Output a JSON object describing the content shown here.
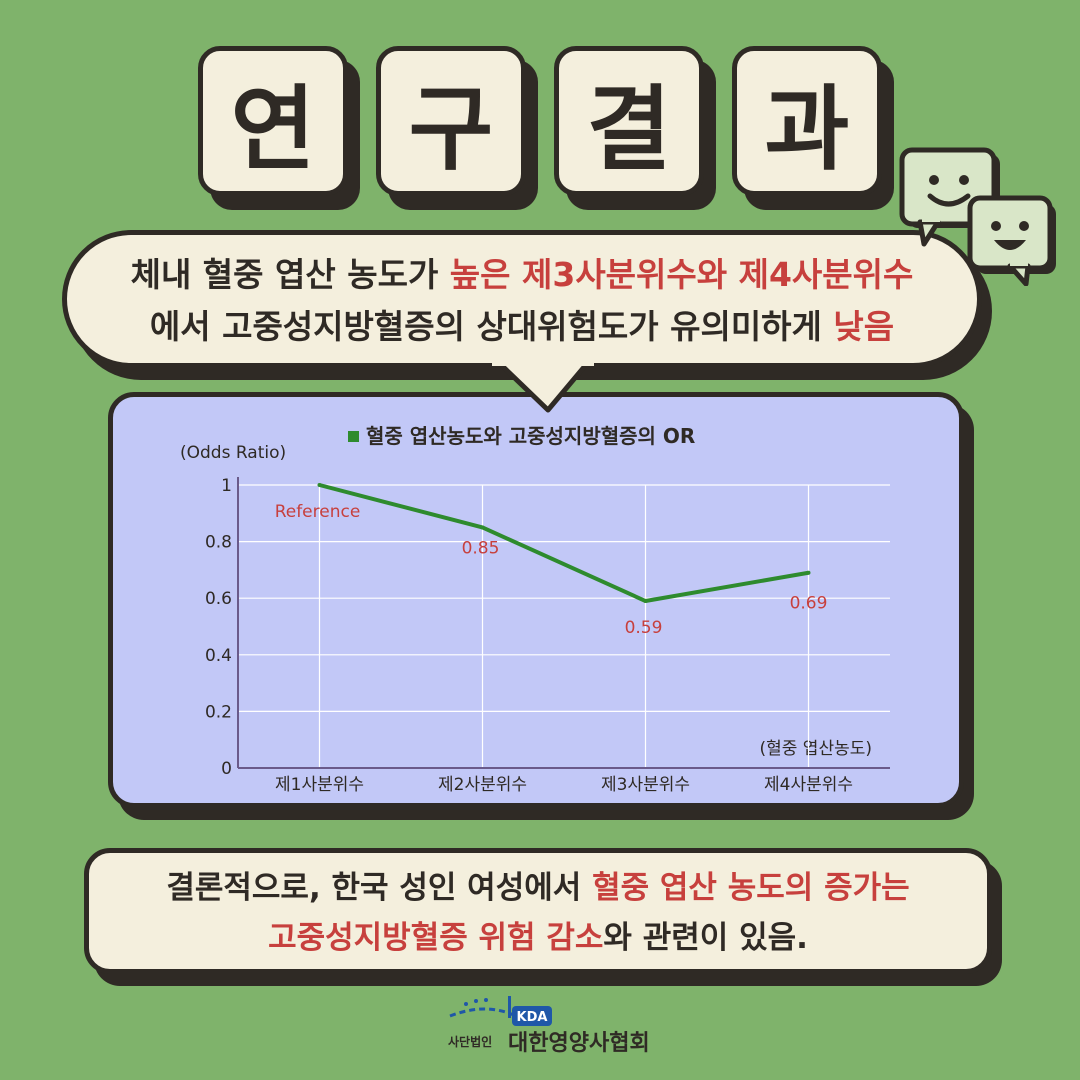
{
  "title": {
    "chars": [
      "연",
      "구",
      "결",
      "과"
    ]
  },
  "summary": {
    "line1_plain": "체내 혈중 엽산 농도가 ",
    "line1_highlight": "높은 제3사분위수와 제4사분위수",
    "line2_plain": "에서 고중성지방혈증의 상대위험도가 유의미하게 ",
    "line2_highlight": "낮음"
  },
  "chart_data": {
    "type": "line",
    "title": "혈중 엽산농도와 고중성지방혈증의 OR",
    "ylabel": "(Odds Ratio)",
    "xlabel": "(혈중 엽산농도)",
    "categories": [
      "제1사분위수",
      "제2사분위수",
      "제3사분위수",
      "제4사분위수"
    ],
    "series": [
      {
        "name": "혈중 엽산농도와 고중성지방혈증의 OR",
        "values": [
          1,
          0.85,
          0.59,
          0.69
        ]
      }
    ],
    "data_labels": [
      "Reference",
      "0.85",
      "0.59",
      "0.69"
    ],
    "yticks": [
      "0",
      "0.2",
      "0.4",
      "0.6",
      "0.8",
      "1"
    ],
    "ylim": [
      0,
      1
    ],
    "grid": true,
    "legend": "top-center",
    "colors": {
      "line": "#2e8b2e",
      "label": "#c7403d",
      "axis": "#6a5a8a",
      "background": "#c2c8f7"
    }
  },
  "conclusion": {
    "line1_plain": "결론적으로, 한국 성인 여성에서 ",
    "line1_highlight": "혈중 엽산 농도의 증가는",
    "line2_highlight": "고중성지방혈증 위험 감소",
    "line2_plain": "와 관련이 있음."
  },
  "logo": {
    "badge": "KDA",
    "prefix": "사단법인",
    "name": "대한영양사협회"
  },
  "icons": [
    "smiley-chat-icon",
    "grin-chat-icon"
  ],
  "colors": {
    "background": "#7fb36b",
    "card": "#f4efdd",
    "ink": "#2f2a25",
    "accent": "#c7403d"
  }
}
